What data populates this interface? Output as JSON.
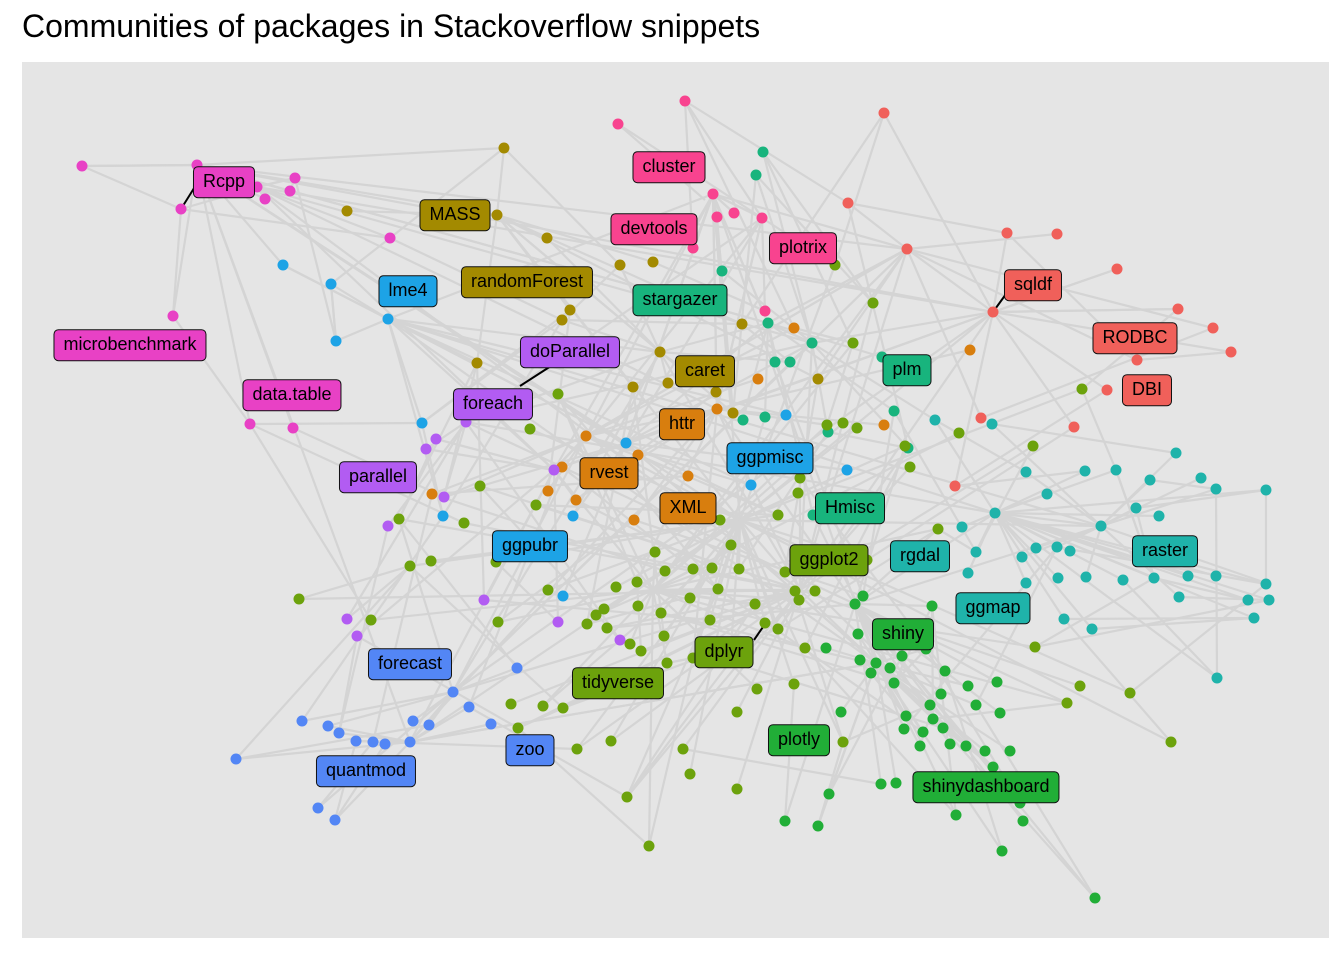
{
  "title": "Communities of packages in Stackoverflow snippets",
  "community_colors": {
    "pink": "#e841c5",
    "hotpink": "#f8438f",
    "olive": "#a38a00",
    "red": "#f0605a",
    "teal": "#1fb3aa",
    "blue": "#1da3e6",
    "purple": "#b25cf2",
    "orange": "#d87e0e",
    "green": "#6ca20c",
    "brightgreen": "#21ae37",
    "jade": "#18b47d",
    "cornflower": "#5386f5"
  },
  "labels": [
    {
      "text": "Rcpp",
      "community": "pink"
    },
    {
      "text": "microbenchmark",
      "community": "pink"
    },
    {
      "text": "data.table",
      "community": "pink"
    },
    {
      "text": "cluster",
      "community": "hotpink"
    },
    {
      "text": "devtools",
      "community": "hotpink"
    },
    {
      "text": "plotrix",
      "community": "hotpink"
    },
    {
      "text": "MASS",
      "community": "olive"
    },
    {
      "text": "randomForest",
      "community": "olive"
    },
    {
      "text": "caret",
      "community": "olive"
    },
    {
      "text": "sqldf",
      "community": "red"
    },
    {
      "text": "RODBC",
      "community": "red"
    },
    {
      "text": "DBI",
      "community": "red"
    },
    {
      "text": "lme4",
      "community": "blue"
    },
    {
      "text": "ggpmisc",
      "community": "blue"
    },
    {
      "text": "ggpubr",
      "community": "blue"
    },
    {
      "text": "stargazer",
      "community": "jade"
    },
    {
      "text": "plm",
      "community": "jade"
    },
    {
      "text": "Hmisc",
      "community": "jade"
    },
    {
      "text": "doParallel",
      "community": "purple"
    },
    {
      "text": "foreach",
      "community": "purple"
    },
    {
      "text": "parallel",
      "community": "purple"
    },
    {
      "text": "httr",
      "community": "orange"
    },
    {
      "text": "rvest",
      "community": "orange"
    },
    {
      "text": "XML",
      "community": "orange"
    },
    {
      "text": "ggplot2",
      "community": "green"
    },
    {
      "text": "dplyr",
      "community": "green"
    },
    {
      "text": "tidyverse",
      "community": "green"
    },
    {
      "text": "rgdal",
      "community": "teal"
    },
    {
      "text": "raster",
      "community": "teal"
    },
    {
      "text": "ggmap",
      "community": "teal"
    },
    {
      "text": "shiny",
      "community": "brightgreen"
    },
    {
      "text": "plotly",
      "community": "brightgreen"
    },
    {
      "text": "shinydashboard",
      "community": "brightgreen"
    },
    {
      "text": "forecast",
      "community": "cornflower"
    },
    {
      "text": "zoo",
      "community": "cornflower"
    },
    {
      "text": "quantmod",
      "community": "cornflower"
    }
  ]
}
